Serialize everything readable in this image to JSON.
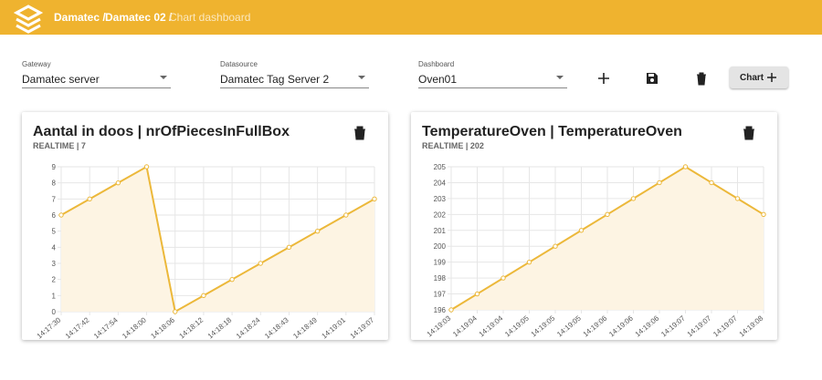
{
  "header": {
    "crumbs": [
      "Damatec /",
      "Damatec 02 /",
      "Chart dashboard"
    ]
  },
  "controls": {
    "gateway": {
      "label": "Gateway",
      "value": "Damatec server"
    },
    "datasource": {
      "label": "Datasource",
      "value": "Damatec Tag Server 2"
    },
    "dashboard": {
      "label": "Dashboard",
      "value": "Oven01"
    },
    "chart_button": "Chart"
  },
  "chart_data": [
    {
      "type": "line",
      "title": "Aantal in doos | nrOfPiecesInFullBox",
      "subtitle": "REALTIME | 7",
      "categories": [
        "14:17:30",
        "14:17:42",
        "14:17:54",
        "14:18:00",
        "14:18:06",
        "14:18:12",
        "14:18:18",
        "14:18:24",
        "14:18:43",
        "14:18:49",
        "14:19:01",
        "14:19:07"
      ],
      "values": [
        6,
        7,
        8,
        9,
        0,
        1,
        2,
        3,
        4,
        5,
        6,
        7
      ],
      "color": "#ecb83a",
      "fill": "#fdf4e3",
      "ylim": [
        0,
        9
      ],
      "yticks": [
        0,
        1,
        2,
        3,
        4,
        5,
        6,
        7,
        8,
        9
      ],
      "grid": true
    },
    {
      "type": "line",
      "title": "TemperatureOven | TemperatureOven",
      "subtitle": "REALTIME | 202",
      "categories": [
        "14:19:03",
        "14:19:04",
        "14:19:04",
        "14:19:05",
        "14:19:05",
        "14:19:05",
        "14:19:06",
        "14:19:06",
        "14:19:06",
        "14:19:07",
        "14:19:07",
        "14:19:07",
        "14:19:08"
      ],
      "values": [
        196,
        197,
        198,
        199,
        200,
        201,
        202,
        203,
        204,
        205,
        204,
        203,
        202
      ],
      "color": "#ecb83a",
      "fill": "#fdf4e3",
      "ylim": [
        196,
        205
      ],
      "yticks": [
        196,
        197,
        198,
        199,
        200,
        201,
        202,
        203,
        204,
        205
      ],
      "grid": true
    }
  ]
}
